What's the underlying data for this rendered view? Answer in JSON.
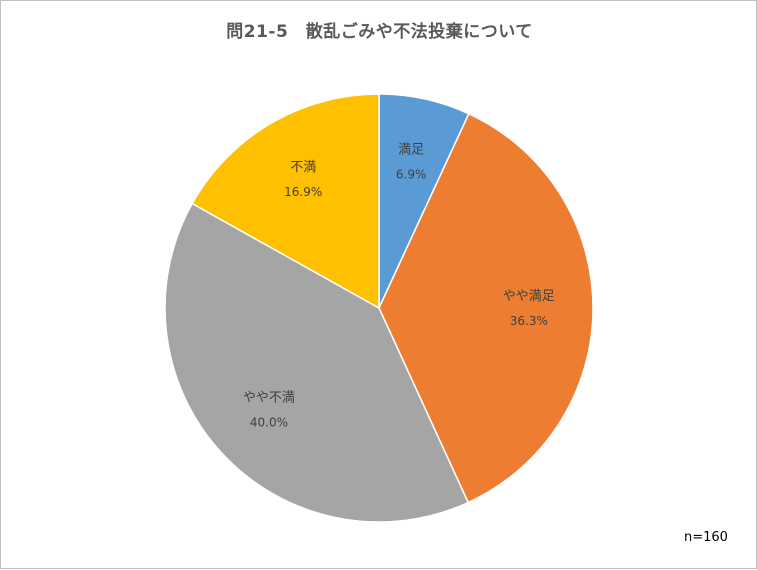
{
  "chart_data": {
    "type": "pie",
    "title": "問21-5　散乱ごみや不法投棄について",
    "note": "n=160",
    "start_angle_deg": 0,
    "direction": "clockwise",
    "slices": [
      {
        "label": "満足",
        "value": 6.9,
        "value_label": "6.9%",
        "color": "#5b9bd5"
      },
      {
        "label": "やや満足",
        "value": 36.3,
        "value_label": "36.3%",
        "color": "#ed7d31"
      },
      {
        "label": "やや不満",
        "value": 40.0,
        "value_label": "40.0%",
        "color": "#a5a5a5"
      },
      {
        "label": "不満",
        "value": 16.9,
        "value_label": "16.9%",
        "color": "#ffc000"
      }
    ],
    "legend": "none",
    "grid": false
  }
}
